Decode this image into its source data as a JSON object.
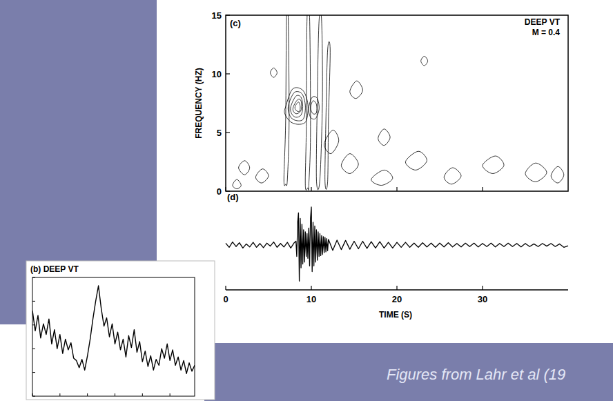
{
  "chart_data": [
    {
      "type": "contour",
      "panel": "(c)",
      "title": "DEEP VT",
      "subtitle": "M = 0.4",
      "y_label": "FREQUENCY (HZ)",
      "xlim": [
        0,
        40
      ],
      "xticks": [
        0,
        10,
        20,
        30
      ],
      "ylim": [
        0,
        15
      ],
      "yticks": [
        0,
        5,
        10,
        15
      ],
      "tick_labels": "y",
      "contours": [
        {
          "t": [
            7.0,
            7.8,
            9.0,
            9.6,
            9.4,
            8.6,
            7.6,
            6.9
          ],
          "f": [
            7.2,
            8.7,
            8.6,
            7.4,
            6.0,
            5.7,
            5.9,
            6.6
          ]
        },
        {
          "t": [
            7.3,
            8.0,
            8.9,
            9.3,
            9.1,
            8.4,
            7.6
          ],
          "f": [
            7.2,
            8.4,
            8.3,
            7.3,
            6.2,
            6.0,
            6.3
          ]
        },
        {
          "t": [
            7.6,
            8.2,
            8.8,
            9.0,
            8.8,
            8.2,
            7.7
          ],
          "f": [
            7.2,
            8.1,
            8.0,
            7.2,
            6.5,
            6.3,
            6.6
          ]
        },
        {
          "t": [
            7.9,
            8.4,
            8.8,
            8.8,
            8.3,
            7.9
          ],
          "f": [
            7.2,
            7.8,
            7.7,
            6.9,
            6.6,
            6.8
          ]
        },
        {
          "t": [
            8.1,
            8.5,
            8.7,
            8.6,
            8.2
          ],
          "f": [
            7.2,
            7.6,
            7.2,
            6.8,
            6.9
          ]
        },
        {
          "t": [
            9.7,
            10.1,
            10.7,
            10.9,
            10.5,
            9.9
          ],
          "f": [
            7.1,
            8.0,
            7.9,
            7.0,
            6.2,
            6.3
          ]
        },
        {
          "t": [
            9.9,
            10.2,
            10.6,
            10.6,
            10.2
          ],
          "f": [
            7.1,
            7.7,
            7.4,
            6.7,
            6.6
          ]
        },
        {
          "t": [
            6.8,
            7.0,
            7.1,
            7.3,
            7.4,
            7.2,
            7.0
          ],
          "f": [
            1.0,
            6.0,
            14.8,
            14.8,
            6.0,
            1.0,
            0.6
          ]
        },
        {
          "t": [
            9.3,
            9.4,
            9.5,
            9.8,
            9.9,
            9.7,
            9.6
          ],
          "f": [
            0.5,
            5.0,
            14.8,
            14.8,
            5.0,
            0.5,
            0.3
          ]
        },
        {
          "t": [
            10.6,
            10.7,
            10.9,
            11.2,
            11.3,
            11.0
          ],
          "f": [
            1.0,
            8.0,
            14.5,
            14.5,
            8.0,
            1.0
          ]
        },
        {
          "t": [
            11.6,
            11.7,
            11.9,
            12.2,
            12.0,
            11.9
          ],
          "f": [
            0.8,
            6.0,
            12.0,
            12.0,
            6.0,
            0.8
          ]
        },
        {
          "t": [
            1.5,
            2.2,
            2.8,
            2.2
          ],
          "f": [
            2.0,
            2.6,
            2.0,
            1.4
          ]
        },
        {
          "t": [
            3.5,
            4.3,
            5.0,
            4.2
          ],
          "f": [
            1.2,
            1.9,
            1.3,
            0.7
          ]
        },
        {
          "t": [
            13.5,
            14.5,
            15.5,
            14.5
          ],
          "f": [
            2.2,
            3.2,
            2.3,
            1.5
          ]
        },
        {
          "t": [
            17.0,
            18.5,
            19.5,
            18.2
          ],
          "f": [
            1.0,
            1.8,
            1.1,
            0.5
          ]
        },
        {
          "t": [
            21.0,
            22.5,
            23.5,
            22.2
          ],
          "f": [
            2.5,
            3.4,
            2.6,
            1.8
          ]
        },
        {
          "t": [
            25.5,
            26.5,
            27.5,
            26.4
          ],
          "f": [
            1.2,
            2.0,
            1.3,
            0.6
          ]
        },
        {
          "t": [
            30.0,
            31.5,
            32.5,
            31.2
          ],
          "f": [
            2.2,
            3.0,
            2.2,
            1.5
          ]
        },
        {
          "t": [
            35.0,
            36.2,
            37.5,
            36.2
          ],
          "f": [
            1.5,
            2.4,
            1.6,
            0.8
          ]
        },
        {
          "t": [
            14.5,
            15.3,
            16.0,
            15.2
          ],
          "f": [
            8.5,
            9.4,
            8.6,
            7.9
          ]
        },
        {
          "t": [
            17.8,
            18.5,
            19.2,
            18.5
          ],
          "f": [
            4.5,
            5.3,
            4.6,
            3.9
          ]
        },
        {
          "t": [
            22.8,
            23.2,
            23.6,
            23.2
          ],
          "f": [
            11.1,
            11.5,
            11.1,
            10.7
          ]
        },
        {
          "t": [
            5.2,
            5.6,
            6.0,
            5.6
          ],
          "f": [
            10.1,
            10.5,
            10.1,
            9.7
          ]
        },
        {
          "t": [
            38.0,
            38.8,
            39.5,
            38.8
          ],
          "f": [
            1.3,
            2.1,
            1.4,
            0.7
          ]
        },
        {
          "t": [
            11.5,
            12.5,
            13.2,
            12.3
          ],
          "f": [
            4.0,
            5.2,
            4.3,
            3.2
          ]
        },
        {
          "t": [
            0.8,
            1.3,
            1.8,
            1.3
          ],
          "f": [
            0.5,
            1.0,
            0.5,
            0.2
          ]
        }
      ]
    },
    {
      "type": "line",
      "panel": "(d)",
      "x_label": "TIME (S)",
      "xlim": [
        0,
        40
      ],
      "xticks": [
        0,
        10,
        20,
        30
      ],
      "ylim": [
        -1,
        1
      ],
      "tick_labels": "x",
      "color": "#000000",
      "x": [
        0,
        0.4,
        0.8,
        1.2,
        1.6,
        2.0,
        2.4,
        2.8,
        3.2,
        3.6,
        4.0,
        4.4,
        4.8,
        5.2,
        5.6,
        6.0,
        6.4,
        6.8,
        7.2,
        7.6,
        8.0,
        8.2,
        8.3,
        8.4,
        8.5,
        8.6,
        8.7,
        8.8,
        8.9,
        9.0,
        9.1,
        9.2,
        9.3,
        9.4,
        9.5,
        9.6,
        9.7,
        9.8,
        9.9,
        10.0,
        10.1,
        10.2,
        10.3,
        10.4,
        10.5,
        10.6,
        10.7,
        10.8,
        10.9,
        11.0,
        11.1,
        11.2,
        11.3,
        11.4,
        11.5,
        11.6,
        11.7,
        11.8,
        11.9,
        12.0,
        12.5,
        13,
        13.5,
        14,
        14.5,
        15,
        15.5,
        16,
        16.5,
        17,
        17.5,
        18,
        18.5,
        19,
        19.5,
        20,
        20.5,
        21,
        21.5,
        22,
        22.5,
        23,
        23.5,
        24,
        24.5,
        25,
        25.5,
        26,
        26.5,
        27,
        27.5,
        28,
        28.5,
        29,
        29.5,
        30,
        30.5,
        31,
        31.5,
        32,
        32.5,
        33,
        33.5,
        34,
        34.5,
        35,
        35.5,
        36,
        36.5,
        37,
        37.5,
        38,
        38.5,
        39,
        39.5,
        40
      ],
      "values": [
        0.05,
        -0.06,
        0.08,
        -0.04,
        0.06,
        -0.08,
        0.03,
        -0.05,
        0.07,
        -0.06,
        0.04,
        -0.07,
        0.05,
        -0.03,
        0.08,
        -0.06,
        0.04,
        -0.05,
        0.07,
        -0.08,
        0.06,
        0.1,
        -0.3,
        0.6,
        0.85,
        -0.95,
        0.7,
        -0.6,
        0.55,
        -0.5,
        0.4,
        -0.45,
        0.35,
        -0.3,
        0.3,
        -0.35,
        0.45,
        -0.55,
        0.7,
        1.0,
        -0.7,
        0.6,
        -0.55,
        0.5,
        -0.45,
        0.4,
        -0.4,
        0.35,
        -0.3,
        0.3,
        -0.28,
        0.25,
        -0.25,
        0.22,
        -0.2,
        0.2,
        -0.18,
        0.17,
        -0.15,
        0.15,
        -0.14,
        0.13,
        -0.12,
        0.12,
        -0.11,
        0.1,
        -0.1,
        0.1,
        -0.09,
        0.09,
        -0.08,
        0.09,
        -0.08,
        0.07,
        -0.08,
        0.07,
        -0.06,
        0.07,
        -0.06,
        0.05,
        -0.06,
        0.06,
        -0.05,
        0.05,
        -0.06,
        0.05,
        -0.05,
        0.06,
        -0.05,
        0.04,
        -0.05,
        0.05,
        -0.04,
        0.05,
        -0.05,
        0.04,
        -0.04,
        0.05,
        -0.05,
        0.04,
        -0.04,
        0.05,
        -0.04,
        0.04,
        -0.05,
        0.04,
        -0.04,
        0.03,
        -0.04,
        0.04,
        -0.03,
        0.04,
        -0.04,
        0.03,
        -0.06,
        -0.02
      ]
    },
    {
      "type": "line",
      "panel": "(b)",
      "title": "DEEP VT",
      "xlim": [
        0,
        59
      ],
      "xticks": [
        0,
        10,
        20,
        30,
        40,
        50
      ],
      "ylim": [
        0,
        10
      ],
      "yticks": [
        0,
        2,
        4,
        6,
        8,
        10
      ],
      "tick_labels": false,
      "color": "#000000",
      "x": [
        0,
        1,
        2,
        3,
        4,
        5,
        6,
        7,
        8,
        9,
        10,
        11,
        12,
        13,
        14,
        15,
        16,
        17,
        18,
        19,
        20,
        21,
        22,
        23,
        24,
        25,
        26,
        27,
        28,
        29,
        30,
        31,
        32,
        33,
        34,
        35,
        36,
        37,
        38,
        39,
        40,
        41,
        42,
        43,
        44,
        45,
        46,
        47,
        48,
        49,
        50,
        51,
        52,
        53,
        54,
        55,
        56,
        57,
        58,
        59
      ],
      "values": [
        7.2,
        5.5,
        6.8,
        4.9,
        6.1,
        5.2,
        6.5,
        4.4,
        5.6,
        4.0,
        5.2,
        3.6,
        4.8,
        3.9,
        4.5,
        3.2,
        3.0,
        2.4,
        3.1,
        2.2,
        3.4,
        4.8,
        6.5,
        8.0,
        9.3,
        7.4,
        5.9,
        6.6,
        5.0,
        6.1,
        4.4,
        5.4,
        3.9,
        4.8,
        3.3,
        5.1,
        4.1,
        5.6,
        3.7,
        4.6,
        2.9,
        3.8,
        2.5,
        3.4,
        2.2,
        3.1,
        2.6,
        4.0,
        3.2,
        4.4,
        3.0,
        3.9,
        2.6,
        3.3,
        2.2,
        3.0,
        1.9,
        2.8,
        2.1,
        2.6
      ]
    }
  ],
  "caption": "Figures from Lahr et al (19"
}
